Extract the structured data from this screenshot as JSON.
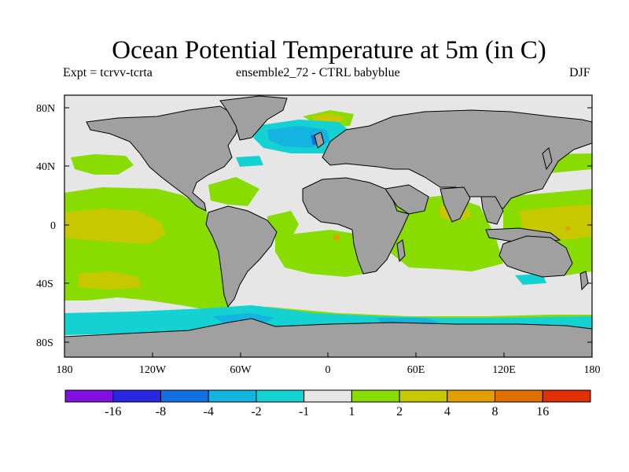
{
  "title": "Ocean Potential Temperature at 5m (in C)",
  "subtitle_left": "Expt = tcrvv-tcrta",
  "subtitle_center": "ensemble2_72 - CTRL babyblue",
  "subtitle_right": "DJF",
  "lat_labels": [
    "80N",
    "40N",
    "0",
    "40S",
    "80S"
  ],
  "lon_labels": [
    "180",
    "120W",
    "60W",
    "0",
    "60E",
    "120E",
    "180"
  ],
  "colorbar": {
    "colors": [
      "#8010e0",
      "#2828e0",
      "#1470e0",
      "#14b4e0",
      "#14d2d2",
      "#e6e6e6",
      "#88dc00",
      "#c8c800",
      "#e0a000",
      "#e07000",
      "#e03000"
    ],
    "labels": [
      "-16",
      "-8",
      "-4",
      "-2",
      "-1",
      "1",
      "2",
      "4",
      "8",
      "16"
    ]
  },
  "colors": {
    "land": "#a0a0a0",
    "ocean_neutral": "#e6e6e6",
    "coastline": "#000000"
  }
}
